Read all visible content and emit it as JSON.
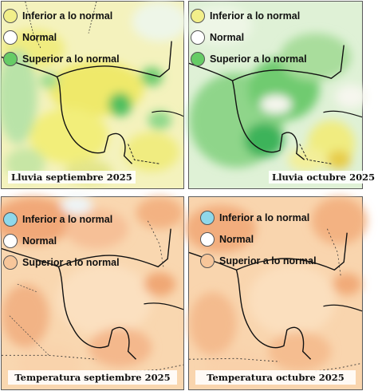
{
  "panels": [
    {
      "caption": "Lluvia septiembre 2025",
      "legend": [
        {
          "label": "Inferior a lo normal",
          "color": "#f2ef8a"
        },
        {
          "label": "Normal",
          "color": "#ffffff"
        },
        {
          "label": "Superior a lo normal",
          "color": "#66cc66"
        }
      ]
    },
    {
      "caption": "Lluvia octubre 2025",
      "legend": [
        {
          "label": "Inferior a lo normal",
          "color": "#f2ef8a"
        },
        {
          "label": "Normal",
          "color": "#ffffff"
        },
        {
          "label": "Superior a lo normal",
          "color": "#66cc66"
        }
      ]
    },
    {
      "caption": "Temperatura septiembre 2025",
      "legend": [
        {
          "label": "Inferior a lo normal",
          "color": "#8fd8ea"
        },
        {
          "label": "Normal",
          "color": "#ffffff"
        },
        {
          "label": "Superior a lo normal",
          "color": "#f7c69a"
        }
      ]
    },
    {
      "caption": "Temperatura octubre 2025",
      "legend": [
        {
          "label": "Inferior a lo normal",
          "color": "#8fd8ea"
        },
        {
          "label": "Normal",
          "color": "#ffffff"
        },
        {
          "label": "Superior a lo normal",
          "color": "#f7c69a"
        }
      ]
    }
  ]
}
